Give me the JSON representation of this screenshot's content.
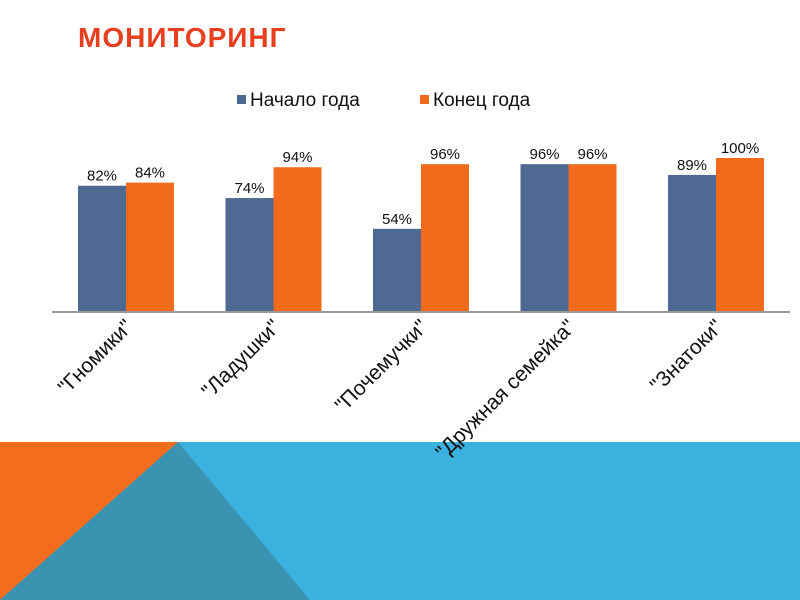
{
  "slide": {
    "title": "МОНИТОРИНГ"
  },
  "colors": {
    "start": "#4f6a92",
    "end": "#f26b1d",
    "title": "#e8401f",
    "deco_orange": "#f46c1e",
    "deco_teal": "#3a93b0",
    "deco_blue": "#3ab1de"
  },
  "chart_data": {
    "type": "bar",
    "title": "",
    "categories": [
      "\"Гномики\"",
      "\"Ладушки\"",
      "\"Почемучки\"",
      "\"Дружная семейка\"",
      "\"Знатоки\""
    ],
    "series": [
      {
        "name": "Начало года",
        "values": [
          82,
          74,
          54,
          96,
          89
        ],
        "labels": [
          "82%",
          "74%",
          "54%",
          "96%",
          "89%"
        ]
      },
      {
        "name": "Конец года",
        "values": [
          84,
          94,
          96,
          96,
          100
        ],
        "labels": [
          "84%",
          "94%",
          "96%",
          "96%",
          "100%"
        ]
      }
    ],
    "ylim": [
      0,
      100
    ],
    "grid": false,
    "legend": "top-center",
    "xlabel": "",
    "ylabel": ""
  }
}
